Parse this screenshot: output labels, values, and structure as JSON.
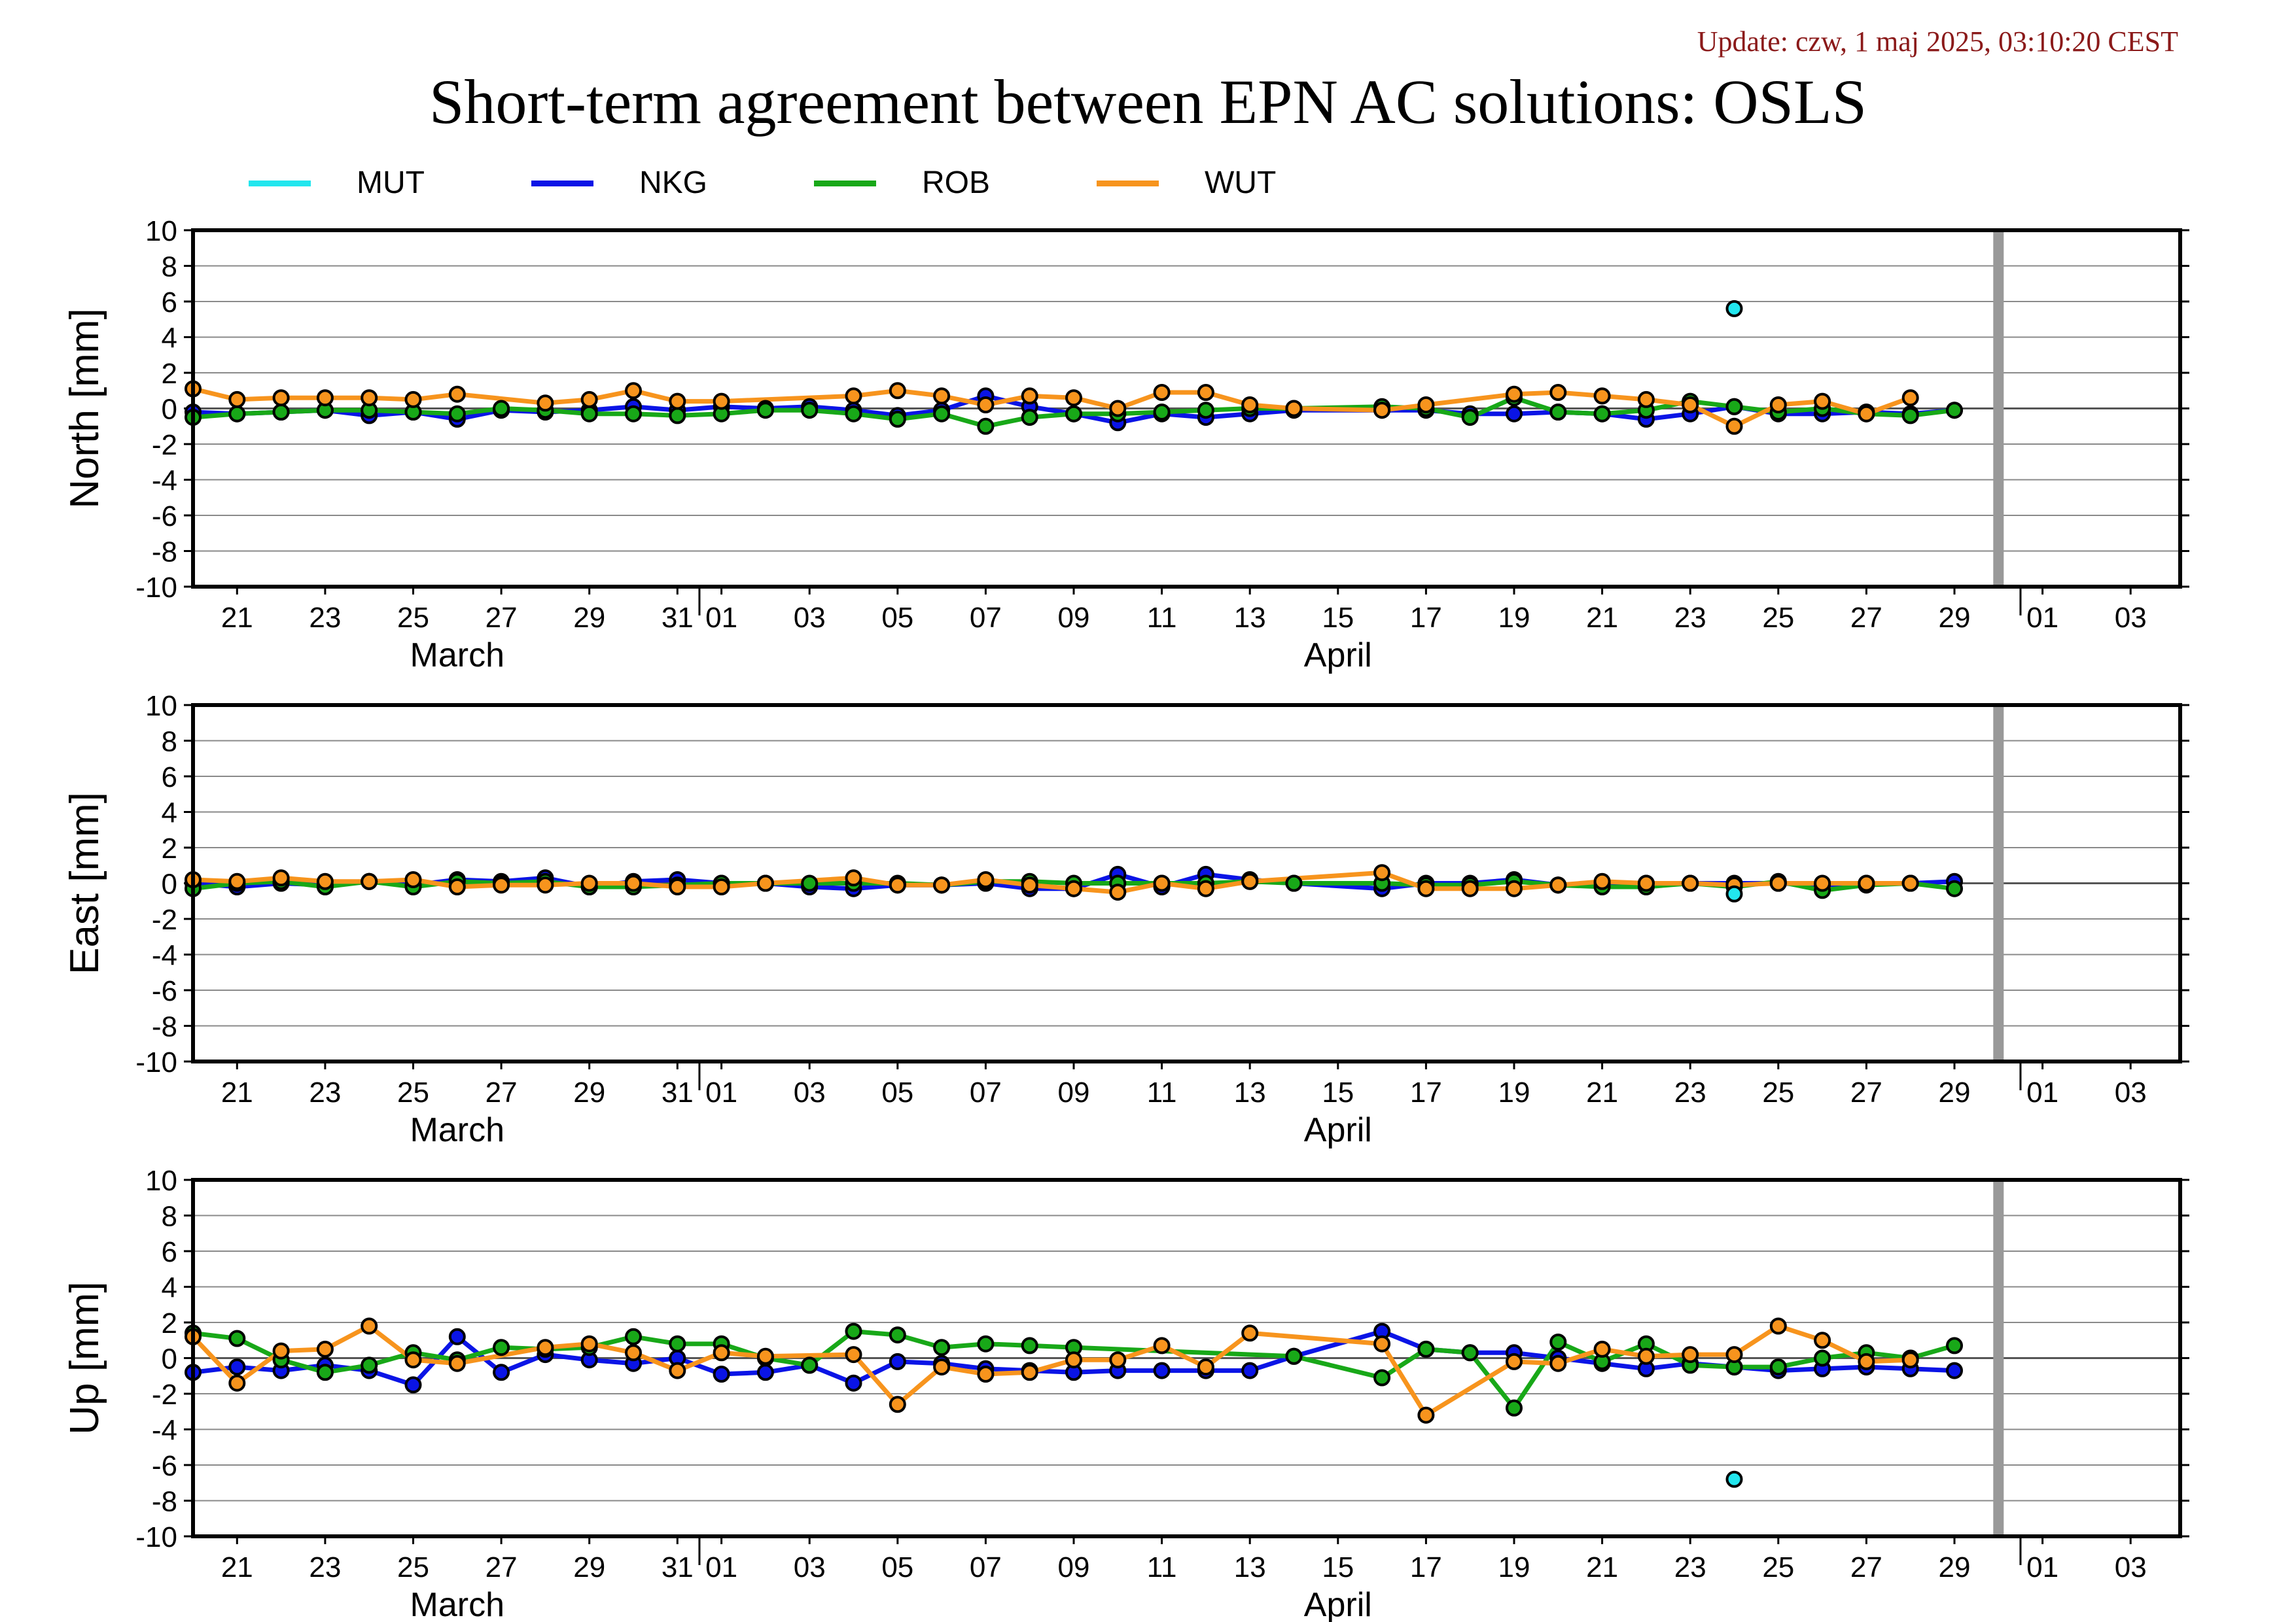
{
  "update_text": "Update: czw, 1 maj 2025, 03:10:20 CEST",
  "title": "Short-term agreement between EPN AC solutions: OSLS",
  "legend": [
    {
      "name": "MUT",
      "color": "#22e6ee"
    },
    {
      "name": "NKG",
      "color": "#0a14e6"
    },
    {
      "name": "ROB",
      "color": "#18a818"
    },
    {
      "name": "WUT",
      "color": "#f7941d"
    }
  ],
  "chart_data": {
    "type": "line",
    "x_axis": {
      "start": "2025-03-20",
      "end": "2025-05-04",
      "tick_labels": [
        "21",
        "23",
        "25",
        "27",
        "29",
        "31",
        "01",
        "03",
        "05",
        "07",
        "09",
        "11",
        "13",
        "15",
        "17",
        "19",
        "21",
        "23",
        "25",
        "27",
        "29",
        "01",
        "03"
      ],
      "month_labels": [
        "March",
        "April"
      ],
      "gray_band_date": "2025-04-30"
    },
    "ylim": [
      -10,
      10
    ],
    "yticks": [
      "10",
      "8",
      "6",
      "4",
      "2",
      "0",
      "-2",
      "-4",
      "-6",
      "-8",
      "-10"
    ],
    "panels": [
      {
        "ylabel": "North [mm]",
        "series": {
          "MUT": {
            "dates": [
              "2025-04-24"
            ],
            "values": [
              5.6
            ]
          },
          "NKG": {
            "dates": [
              "2025-03-20",
              "2025-03-21",
              "2025-03-22",
              "2025-03-23",
              "2025-03-24",
              "2025-03-25",
              "2025-03-26",
              "2025-03-27",
              "2025-03-28",
              "2025-03-29",
              "2025-03-30",
              "2025-03-31",
              "2025-04-01",
              "2025-04-02",
              "2025-04-03",
              "2025-04-04",
              "2025-04-05",
              "2025-04-06",
              "2025-04-07",
              "2025-04-08",
              "2025-04-09",
              "2025-04-10",
              "2025-04-11",
              "2025-04-12",
              "2025-04-13",
              "2025-04-14",
              "2025-04-16",
              "2025-04-17",
              "2025-04-18",
              "2025-04-19",
              "2025-04-20",
              "2025-04-21",
              "2025-04-22",
              "2025-04-23",
              "2025-04-24",
              "2025-04-25",
              "2025-04-26",
              "2025-04-27",
              "2025-04-28",
              "2025-04-29"
            ],
            "values": [
              -0.2,
              -0.3,
              -0.2,
              -0.1,
              -0.4,
              -0.2,
              -0.6,
              -0.1,
              -0.2,
              -0.1,
              0.1,
              -0.1,
              0.1,
              0.0,
              0.1,
              -0.1,
              -0.4,
              -0.1,
              0.7,
              0.1,
              -0.3,
              -0.8,
              -0.3,
              -0.5,
              -0.3,
              -0.1,
              -0.1,
              -0.1,
              -0.3,
              -0.3,
              -0.2,
              -0.3,
              -0.6,
              -0.3,
              0.1,
              -0.3,
              -0.3,
              -0.2,
              -0.3,
              -0.1
            ]
          },
          "ROB": {
            "dates": [
              "2025-03-20",
              "2025-03-21",
              "2025-03-22",
              "2025-03-23",
              "2025-03-24",
              "2025-03-25",
              "2025-03-26",
              "2025-03-27",
              "2025-03-28",
              "2025-03-29",
              "2025-03-30",
              "2025-03-31",
              "2025-04-01",
              "2025-04-02",
              "2025-04-03",
              "2025-04-04",
              "2025-04-05",
              "2025-04-06",
              "2025-04-07",
              "2025-04-08",
              "2025-04-09",
              "2025-04-10",
              "2025-04-11",
              "2025-04-12",
              "2025-04-13",
              "2025-04-14",
              "2025-04-16",
              "2025-04-17",
              "2025-04-18",
              "2025-04-19",
              "2025-04-20",
              "2025-04-21",
              "2025-04-22",
              "2025-04-23",
              "2025-04-24",
              "2025-04-25",
              "2025-04-26",
              "2025-04-27",
              "2025-04-28",
              "2025-04-29"
            ],
            "values": [
              -0.5,
              -0.3,
              -0.2,
              -0.1,
              -0.1,
              -0.2,
              -0.3,
              0.0,
              -0.1,
              -0.3,
              -0.3,
              -0.4,
              -0.3,
              -0.1,
              -0.1,
              -0.3,
              -0.6,
              -0.3,
              -1.0,
              -0.5,
              -0.3,
              -0.3,
              -0.2,
              -0.1,
              0.0,
              0.0,
              0.1,
              0.0,
              -0.5,
              0.6,
              -0.2,
              -0.3,
              -0.1,
              0.4,
              0.1,
              -0.2,
              0.0,
              -0.3,
              -0.4,
              -0.1
            ]
          },
          "WUT": {
            "dates": [
              "2025-03-20",
              "2025-03-21",
              "2025-03-22",
              "2025-03-23",
              "2025-03-24",
              "2025-03-25",
              "2025-03-26",
              "2025-03-28",
              "2025-03-29",
              "2025-03-30",
              "2025-03-31",
              "2025-04-01",
              "2025-04-04",
              "2025-04-05",
              "2025-04-06",
              "2025-04-07",
              "2025-04-08",
              "2025-04-09",
              "2025-04-10",
              "2025-04-11",
              "2025-04-12",
              "2025-04-13",
              "2025-04-14",
              "2025-04-16",
              "2025-04-17",
              "2025-04-19",
              "2025-04-20",
              "2025-04-21",
              "2025-04-22",
              "2025-04-23",
              "2025-04-24",
              "2025-04-25",
              "2025-04-26",
              "2025-04-27",
              "2025-04-28"
            ],
            "values": [
              1.1,
              0.5,
              0.6,
              0.6,
              0.6,
              0.5,
              0.8,
              0.3,
              0.5,
              1.0,
              0.4,
              0.4,
              0.7,
              1.0,
              0.7,
              0.2,
              0.7,
              0.6,
              0.0,
              0.9,
              0.9,
              0.2,
              0.0,
              -0.1,
              0.2,
              0.8,
              0.9,
              0.7,
              0.5,
              0.2,
              -1.0,
              0.2,
              0.4,
              -0.3,
              0.6
            ]
          }
        }
      },
      {
        "ylabel": "East [mm]",
        "series": {
          "MUT": {
            "dates": [
              "2025-04-24"
            ],
            "values": [
              -0.6
            ]
          },
          "NKG": {
            "dates": [
              "2025-03-20",
              "2025-03-21",
              "2025-03-22",
              "2025-03-23",
              "2025-03-24",
              "2025-03-25",
              "2025-03-26",
              "2025-03-27",
              "2025-03-28",
              "2025-03-29",
              "2025-03-30",
              "2025-03-31",
              "2025-04-01",
              "2025-04-02",
              "2025-04-03",
              "2025-04-04",
              "2025-04-05",
              "2025-04-06",
              "2025-04-07",
              "2025-04-08",
              "2025-04-09",
              "2025-04-10",
              "2025-04-11",
              "2025-04-12",
              "2025-04-13",
              "2025-04-14",
              "2025-04-16",
              "2025-04-17",
              "2025-04-18",
              "2025-04-19",
              "2025-04-20",
              "2025-04-21",
              "2025-04-22",
              "2025-04-23",
              "2025-04-24",
              "2025-04-25",
              "2025-04-26",
              "2025-04-27",
              "2025-04-28",
              "2025-04-29"
            ],
            "values": [
              0.0,
              -0.2,
              0.0,
              -0.1,
              0.1,
              -0.1,
              0.2,
              0.1,
              0.3,
              -0.2,
              0.1,
              0.2,
              0.0,
              0.0,
              -0.2,
              -0.3,
              -0.1,
              -0.1,
              0.0,
              -0.3,
              -0.3,
              0.5,
              -0.2,
              0.5,
              0.2,
              0.0,
              -0.3,
              0.0,
              0.0,
              0.2,
              -0.1,
              0.0,
              0.0,
              0.0,
              0.0,
              0.0,
              -0.1,
              0.0,
              0.0,
              0.1
            ]
          },
          "ROB": {
            "dates": [
              "2025-03-20",
              "2025-03-21",
              "2025-03-22",
              "2025-03-23",
              "2025-03-24",
              "2025-03-25",
              "2025-03-26",
              "2025-03-27",
              "2025-03-28",
              "2025-03-29",
              "2025-03-30",
              "2025-03-31",
              "2025-04-01",
              "2025-04-02",
              "2025-04-03",
              "2025-04-04",
              "2025-04-05",
              "2025-04-06",
              "2025-04-07",
              "2025-04-08",
              "2025-04-09",
              "2025-04-10",
              "2025-04-11",
              "2025-04-12",
              "2025-04-13",
              "2025-04-14",
              "2025-04-16",
              "2025-04-17",
              "2025-04-18",
              "2025-04-19",
              "2025-04-20",
              "2025-04-21",
              "2025-04-22",
              "2025-04-23",
              "2025-04-24",
              "2025-04-25",
              "2025-04-26",
              "2025-04-27",
              "2025-04-28",
              "2025-04-29"
            ],
            "values": [
              -0.3,
              0.0,
              0.1,
              -0.2,
              0.1,
              -0.2,
              0.1,
              0.0,
              0.1,
              -0.2,
              -0.2,
              -0.1,
              0.0,
              0.0,
              0.0,
              0.0,
              0.0,
              -0.1,
              0.1,
              0.1,
              0.0,
              0.0,
              0.0,
              0.0,
              0.1,
              0.0,
              0.0,
              -0.1,
              -0.1,
              0.1,
              -0.1,
              -0.2,
              -0.2,
              0.0,
              -0.2,
              0.1,
              -0.4,
              -0.1,
              0.0,
              -0.3
            ]
          },
          "WUT": {
            "dates": [
              "2025-03-20",
              "2025-03-21",
              "2025-03-22",
              "2025-03-23",
              "2025-03-24",
              "2025-03-25",
              "2025-03-26",
              "2025-03-27",
              "2025-03-28",
              "2025-03-29",
              "2025-03-30",
              "2025-03-31",
              "2025-04-01",
              "2025-04-02",
              "2025-04-04",
              "2025-04-05",
              "2025-04-06",
              "2025-04-07",
              "2025-04-08",
              "2025-04-09",
              "2025-04-10",
              "2025-04-11",
              "2025-04-12",
              "2025-04-13",
              "2025-04-16",
              "2025-04-17",
              "2025-04-18",
              "2025-04-19",
              "2025-04-20",
              "2025-04-21",
              "2025-04-22",
              "2025-04-23",
              "2025-04-24",
              "2025-04-25",
              "2025-04-26",
              "2025-04-27",
              "2025-04-28"
            ],
            "values": [
              0.2,
              0.1,
              0.3,
              0.1,
              0.1,
              0.2,
              -0.2,
              -0.1,
              -0.1,
              0.0,
              0.0,
              -0.2,
              -0.2,
              0.0,
              0.3,
              -0.1,
              -0.1,
              0.2,
              -0.1,
              -0.3,
              -0.5,
              0.0,
              -0.3,
              0.1,
              0.6,
              -0.3,
              -0.3,
              -0.3,
              -0.1,
              0.1,
              0.0,
              0.0,
              -0.1,
              0.0,
              0.0,
              0.0,
              0.0
            ]
          }
        }
      },
      {
        "ylabel": "Up [mm]",
        "series": {
          "MUT": {
            "dates": [
              "2025-04-24"
            ],
            "values": [
              -6.8
            ]
          },
          "NKG": {
            "dates": [
              "2025-03-20",
              "2025-03-21",
              "2025-03-22",
              "2025-03-23",
              "2025-03-24",
              "2025-03-25",
              "2025-03-26",
              "2025-03-27",
              "2025-03-28",
              "2025-03-29",
              "2025-03-30",
              "2025-03-31",
              "2025-04-01",
              "2025-04-02",
              "2025-04-03",
              "2025-04-04",
              "2025-04-05",
              "2025-04-06",
              "2025-04-07",
              "2025-04-08",
              "2025-04-09",
              "2025-04-10",
              "2025-04-11",
              "2025-04-12",
              "2025-04-13",
              "2025-04-14",
              "2025-04-16",
              "2025-04-17",
              "2025-04-18",
              "2025-04-19",
              "2025-04-20",
              "2025-04-21",
              "2025-04-22",
              "2025-04-23",
              "2025-04-24",
              "2025-04-25",
              "2025-04-26",
              "2025-04-27",
              "2025-04-28",
              "2025-04-29"
            ],
            "values": [
              -0.8,
              -0.5,
              -0.7,
              -0.4,
              -0.7,
              -1.5,
              1.2,
              -0.8,
              0.2,
              -0.1,
              -0.3,
              0.0,
              -0.9,
              -0.8,
              -0.4,
              -1.4,
              -0.2,
              -0.3,
              -0.6,
              -0.7,
              -0.8,
              -0.7,
              -0.7,
              -0.7,
              -0.7,
              0.1,
              1.5,
              0.5,
              0.3,
              0.3,
              0.0,
              -0.3,
              -0.6,
              -0.3,
              -0.5,
              -0.7,
              -0.6,
              -0.5,
              -0.6,
              -0.7
            ]
          },
          "ROB": {
            "dates": [
              "2025-03-20",
              "2025-03-21",
              "2025-03-22",
              "2025-03-23",
              "2025-03-24",
              "2025-03-25",
              "2025-03-26",
              "2025-03-27",
              "2025-03-28",
              "2025-03-29",
              "2025-03-30",
              "2025-03-31",
              "2025-04-01",
              "2025-04-02",
              "2025-04-03",
              "2025-04-04",
              "2025-04-05",
              "2025-04-06",
              "2025-04-07",
              "2025-04-08",
              "2025-04-09",
              "2025-04-14",
              "2025-04-16",
              "2025-04-17",
              "2025-04-18",
              "2025-04-19",
              "2025-04-20",
              "2025-04-21",
              "2025-04-22",
              "2025-04-23",
              "2025-04-24",
              "2025-04-25",
              "2025-04-26",
              "2025-04-27",
              "2025-04-28",
              "2025-04-29"
            ],
            "values": [
              1.4,
              1.1,
              -0.1,
              -0.8,
              -0.4,
              0.3,
              -0.1,
              0.6,
              0.5,
              0.6,
              1.2,
              0.8,
              0.8,
              0.0,
              -0.4,
              1.5,
              1.3,
              0.6,
              0.8,
              0.7,
              0.6,
              0.1,
              -1.1,
              0.5,
              0.3,
              -2.8,
              0.9,
              -0.2,
              0.8,
              -0.4,
              -0.5,
              -0.5,
              0.0,
              0.3,
              0.0,
              0.7
            ]
          },
          "WUT": {
            "dates": [
              "2025-03-20",
              "2025-03-21",
              "2025-03-22",
              "2025-03-23",
              "2025-03-24",
              "2025-03-25",
              "2025-03-26",
              "2025-03-28",
              "2025-03-29",
              "2025-03-30",
              "2025-03-31",
              "2025-04-01",
              "2025-04-02",
              "2025-04-04",
              "2025-04-05",
              "2025-04-06",
              "2025-04-07",
              "2025-04-08",
              "2025-04-09",
              "2025-04-10",
              "2025-04-11",
              "2025-04-12",
              "2025-04-13",
              "2025-04-16",
              "2025-04-17",
              "2025-04-19",
              "2025-04-20",
              "2025-04-21",
              "2025-04-22",
              "2025-04-23",
              "2025-04-24",
              "2025-04-25",
              "2025-04-26",
              "2025-04-27",
              "2025-04-28"
            ],
            "values": [
              1.2,
              -1.4,
              0.4,
              0.5,
              1.8,
              -0.1,
              -0.3,
              0.6,
              0.8,
              0.3,
              -0.7,
              0.3,
              0.1,
              0.2,
              -2.6,
              -0.5,
              -0.9,
              -0.8,
              -0.1,
              -0.1,
              0.7,
              -0.5,
              1.4,
              0.8,
              -3.2,
              -0.2,
              -0.3,
              0.5,
              0.1,
              0.2,
              0.2,
              1.8,
              1.0,
              -0.2,
              -0.1
            ]
          }
        }
      }
    ]
  }
}
